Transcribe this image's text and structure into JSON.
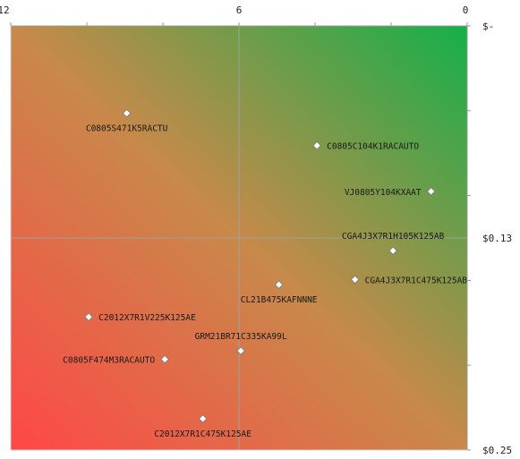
{
  "chart_data": {
    "type": "scatter",
    "title": "",
    "xlabel": "",
    "ylabel": "",
    "xlim": [
      12,
      0
    ],
    "ylim": [
      0,
      0.25
    ],
    "x_ticks": [
      {
        "value": 12,
        "label": "12"
      },
      {
        "value": 6,
        "label": "6"
      },
      {
        "value": 0,
        "label": "0"
      }
    ],
    "y_ticks": [
      {
        "value": 0,
        "label": "$-"
      },
      {
        "value": 0.125,
        "label": "$0.13"
      },
      {
        "value": 0.25,
        "label": "$0.25"
      }
    ],
    "grid": true,
    "colors": {
      "top_right": "#14b04a",
      "bottom_left": "#ff4747",
      "marker": "#ffffff",
      "grid": "#a0a0a0"
    },
    "points": [
      {
        "label": "C0805S471K5RACTU",
        "x": 8.95,
        "y": 0.0515
      },
      {
        "label": "C0805C104K1RACAUTO",
        "x": 3.95,
        "y": 0.0705
      },
      {
        "label": "VJ0805Y104KXAAT",
        "x": 0.95,
        "y": 0.0975
      },
      {
        "label": "CGA4J3X7R1H105K125AB",
        "x": 1.95,
        "y": 0.1325
      },
      {
        "label": "CGA4J3X7R1C475K125AB",
        "x": 2.95,
        "y": 0.1495
      },
      {
        "label": "CL21B475KAFNNNE",
        "x": 4.95,
        "y": 0.1525
      },
      {
        "label": "C2012X7R1V225K125AE",
        "x": 9.95,
        "y": 0.1715
      },
      {
        "label": "GRM21BR71C335KA99L",
        "x": 5.95,
        "y": 0.1915
      },
      {
        "label": "C0805F474M3RACAUTO",
        "x": 7.95,
        "y": 0.1965
      },
      {
        "label": "C2012X7R1C475K125AE",
        "x": 6.95,
        "y": 0.2315
      }
    ]
  }
}
